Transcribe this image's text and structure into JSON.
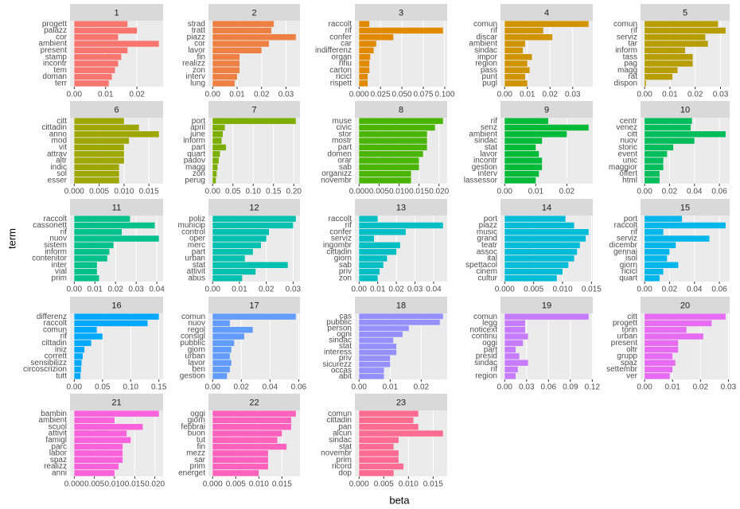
{
  "chart_data": {
    "type": "bar",
    "xlabel": "beta",
    "ylabel": "term",
    "facets": [
      {
        "title": "1",
        "color": "#F8766D",
        "categories": [
          "progett",
          "palazz",
          "cor",
          "ambient",
          "present",
          "stamp",
          "incontr",
          "tem",
          "doman",
          "terr"
        ],
        "values": [
          0.017,
          0.02,
          0.014,
          0.027,
          0.017,
          0.015,
          0.014,
          0.013,
          0.012,
          0.011
        ],
        "xlim": [
          -0.00135,
          0.02835
        ],
        "xticks": [
          {
            "value": 0,
            "label": "0.00"
          },
          0.01,
          0.02
        ]
      },
      {
        "title": "2",
        "color": "#EE8044",
        "categories": [
          "strad",
          "tratt",
          "piazz",
          "cor",
          "lavor",
          "fin",
          "realizz",
          "zon",
          "interv",
          "lung"
        ],
        "values": [
          0.025,
          0.024,
          0.034,
          0.023,
          0.02,
          0.011,
          0.011,
          0.011,
          0.01,
          0.009
        ],
        "xlim": [
          -0.0017,
          0.0357
        ],
        "xticks": [
          {
            "value": 0,
            "label": "0.00"
          },
          0.01,
          0.02,
          0.03
        ]
      },
      {
        "title": "3",
        "color": "#E18A00",
        "categories": [
          "raccolt",
          "rif",
          "confer",
          "car",
          "indifferenz",
          "organ",
          "rifiu",
          "carton",
          "ricicl",
          "rispett"
        ],
        "values": [
          0.012,
          0.098,
          0.04,
          0.02,
          0.017,
          0.013,
          0.012,
          0.012,
          0.01,
          0.01
        ],
        "xlim": [
          -0.0049,
          0.1029
        ],
        "xticks": [
          {
            "value": 0,
            "label": "0.000"
          },
          0.025,
          {
            "value": 0.05,
            "label": "0.050"
          },
          0.075,
          {
            "value": 0.1,
            "label": "0.100"
          }
        ]
      },
      {
        "title": "4",
        "color": "#CF9400",
        "categories": [
          "comun",
          "rif",
          "discar",
          "ambient",
          "sindac",
          "impor",
          "region",
          "pass",
          "punt",
          "pugl"
        ],
        "values": [
          0.037,
          0.017,
          0.021,
          0.009,
          0.008,
          0.012,
          0.01,
          0.011,
          0.009,
          0.01
        ],
        "xlim": [
          -0.00185,
          0.03885
        ],
        "xticks": [
          {
            "value": 0,
            "label": "0.00"
          },
          0.01,
          0.02,
          0.03
        ]
      },
      {
        "title": "5",
        "color": "#B89D00",
        "categories": [
          "comun",
          "rif",
          "serviz",
          "tar",
          "inform",
          "tass",
          "pag",
          "magg",
          "rat",
          "dispon"
        ],
        "values": [
          0.029,
          0.032,
          0.024,
          0.025,
          0.016,
          0.019,
          0.019,
          0.013,
          0.011,
          0.0005
        ],
        "xlim": [
          -0.0016,
          0.0336
        ],
        "xticks": [
          {
            "value": 0,
            "label": "0.00"
          },
          0.01,
          0.02,
          0.03
        ]
      },
      {
        "title": "6",
        "color": "#9DA700",
        "categories": [
          "citt",
          "cittadin",
          "anno",
          "mod",
          "vit",
          "attrav",
          "altr",
          "indic",
          "sol",
          "esser"
        ],
        "values": [
          0.01,
          0.013,
          0.017,
          0.011,
          0.01,
          0.01,
          0.01,
          0.009,
          0.009,
          0.009
        ],
        "xlim": [
          -0.00085,
          0.01785
        ],
        "xticks": [
          {
            "value": 0,
            "label": "0.000"
          },
          0.005,
          {
            "value": 0.01,
            "label": "0.010"
          },
          0.015
        ]
      },
      {
        "title": "7",
        "color": "#7CAE00",
        "categories": [
          "port",
          "april",
          "june",
          "inform",
          "part",
          "quart",
          "padov",
          "magg",
          "zon",
          "perug"
        ],
        "values": [
          0.205,
          0.03,
          0.025,
          0.022,
          0.033,
          0.018,
          0.015,
          0.012,
          0.01,
          0.008
        ],
        "xlim": [
          -0.01025,
          0.21525
        ],
        "xticks": [
          {
            "value": 0,
            "label": "0.00"
          },
          0.05,
          {
            "value": 0.1,
            "label": "0.10"
          },
          0.15,
          {
            "value": 0.2,
            "label": "0.20"
          }
        ]
      },
      {
        "title": "8",
        "color": "#49B500",
        "categories": [
          "muse",
          "civic",
          "stor",
          "mostr",
          "part",
          "domen",
          "orar",
          "sab",
          "organizz",
          "novembr"
        ],
        "values": [
          0.021,
          0.019,
          0.017,
          0.017,
          0.017,
          0.016,
          0.015,
          0.015,
          0.013,
          0.013
        ],
        "xlim": [
          -0.00105,
          0.02205
        ],
        "xticks": [
          {
            "value": 0,
            "label": "0.000"
          },
          0.005,
          {
            "value": 0.01,
            "label": "0.010"
          },
          0.015,
          {
            "value": 0.02,
            "label": "0.020"
          }
        ]
      },
      {
        "title": "9",
        "color": "#00BA38",
        "categories": [
          "rif",
          "senz",
          "ambient",
          "sindac",
          "stat",
          "lavor",
          "incontr",
          "gestion",
          "interv",
          "lassessor"
        ],
        "values": [
          0.014,
          0.027,
          0.02,
          0.012,
          0.01,
          0.011,
          0.012,
          0.012,
          0.011,
          0.01
        ],
        "xlim": [
          -0.00135,
          0.02835
        ],
        "xticks": [
          {
            "value": 0,
            "label": "0.00"
          },
          0.01,
          0.02
        ]
      },
      {
        "title": "10",
        "color": "#00BD5C",
        "categories": [
          "centr",
          "venez",
          "citt",
          "nuov",
          "storic",
          "event",
          "unic",
          "maggior",
          "offert",
          "html"
        ],
        "values": [
          0.038,
          0.037,
          0.065,
          0.04,
          0.023,
          0.018,
          0.015,
          0.015,
          0.012,
          0.012
        ],
        "xlim": [
          -0.00325,
          0.06825
        ],
        "xticks": [
          {
            "value": 0,
            "label": "0.00"
          },
          0.02,
          0.04,
          0.06
        ]
      },
      {
        "title": "11",
        "color": "#00C08B",
        "categories": [
          "raccolt",
          "cassonett",
          "rif",
          "nuov",
          "sistem",
          "inform",
          "contenitor",
          "inter",
          "vial",
          "prim"
        ],
        "values": [
          0.027,
          0.039,
          0.023,
          0.041,
          0.019,
          0.017,
          0.016,
          0.011,
          0.011,
          0.012
        ],
        "xlim": [
          -0.00205,
          0.04305
        ],
        "xticks": [
          {
            "value": 0,
            "label": "0.00"
          },
          0.01,
          0.02,
          0.03,
          0.04
        ]
      },
      {
        "title": "12",
        "color": "#00C0AF",
        "categories": [
          "poliz",
          "municip",
          "control",
          "oper",
          "merc",
          "part",
          "urban",
          "stat",
          "attivit",
          "abus"
        ],
        "values": [
          0.031,
          0.03,
          0.021,
          0.02,
          0.018,
          0.015,
          0.012,
          0.028,
          0.016,
          0.011
        ],
        "xlim": [
          -0.00155,
          0.03255
        ],
        "xticks": [
          {
            "value": 0,
            "label": "0.00"
          },
          0.01,
          0.02,
          0.03
        ]
      },
      {
        "title": "13",
        "color": "#00BFC4",
        "categories": [
          "raccolt",
          "rif",
          "confer",
          "serviz",
          "ingombr",
          "cittadin",
          "giorn",
          "sab",
          "priv",
          "zon"
        ],
        "values": [
          0.01,
          0.045,
          0.025,
          0.008,
          0.022,
          0.02,
          0.015,
          0.013,
          0.011,
          0.01
        ],
        "xlim": [
          -0.00225,
          0.04725
        ],
        "xticks": [
          {
            "value": 0,
            "label": "0.00"
          },
          0.01,
          0.02,
          0.03,
          0.04
        ]
      },
      {
        "title": "14",
        "color": "#00BCD8",
        "categories": [
          "port",
          "piazz",
          "music",
          "grand",
          "teatr",
          "assoc",
          "ital",
          "spettacol",
          "cinem",
          "cultur"
        ],
        "values": [
          0.0105,
          0.012,
          0.0145,
          0.014,
          0.013,
          0.0125,
          0.012,
          0.011,
          0.01,
          0.009
        ],
        "xlim": [
          -0.000725,
          0.015225
        ],
        "xticks": [
          {
            "value": 0,
            "label": "0.000"
          },
          0.005,
          {
            "value": 0.01,
            "label": "0.010"
          },
          0.015
        ]
      },
      {
        "title": "15",
        "color": "#00B6EB",
        "categories": [
          "port",
          "raccolt",
          "rif",
          "serviz",
          "dicembr",
          "gennai",
          "isol",
          "giorn",
          "ricicl",
          "quart"
        ],
        "values": [
          0.03,
          0.065,
          0.015,
          0.052,
          0.025,
          0.02,
          0.018,
          0.027,
          0.015,
          0.012
        ],
        "xlim": [
          -0.00325,
          0.06825
        ],
        "xticks": [
          {
            "value": 0,
            "label": "0.00"
          },
          0.02,
          0.04,
          0.06
        ]
      },
      {
        "title": "16",
        "color": "#00A9FF",
        "categories": [
          "differenz",
          "raccolt",
          "comun",
          "rif",
          "cittadin",
          "iniz",
          "corrett",
          "sensibilizz",
          "circoscrizion",
          "tutt"
        ],
        "values": [
          0.15,
          0.13,
          0.04,
          0.05,
          0.03,
          0.018,
          0.015,
          0.013,
          0.012,
          0.011
        ],
        "xlim": [
          -0.0075,
          0.1575
        ],
        "xticks": [
          {
            "value": 0,
            "label": "0.00"
          },
          0.05,
          {
            "value": 0.1,
            "label": "0.10"
          },
          0.15
        ]
      },
      {
        "title": "17",
        "color": "#619CFF",
        "categories": [
          "comun",
          "nuov",
          "regol",
          "consigl",
          "pubblic",
          "giorn",
          "urban",
          "lavor",
          "ben",
          "gestion"
        ],
        "values": [
          0.058,
          0.012,
          0.028,
          0.022,
          0.015,
          0.013,
          0.012,
          0.013,
          0.012,
          0.01
        ],
        "xlim": [
          -0.0029,
          0.0609
        ],
        "xticks": [
          {
            "value": 0,
            "label": "0.00"
          },
          0.02,
          0.04,
          0.06
        ]
      },
      {
        "title": "18",
        "color": "#9590FF",
        "categories": [
          "cas",
          "pubblic",
          "person",
          "ogni",
          "sindac",
          "stat",
          "interess",
          "priv",
          "sicurezz",
          "occas",
          "abit"
        ],
        "values": [
          0.027,
          0.026,
          0.016,
          0.014,
          0.011,
          0.012,
          0.012,
          0.01,
          0.01,
          0.008,
          0.008
        ],
        "xlim": [
          -0.00135,
          0.02835
        ],
        "xticks": [
          {
            "value": 0,
            "label": "0.00"
          },
          0.01,
          0.02
        ]
      },
      {
        "title": "19",
        "color": "#C77CFF",
        "categories": [
          "comun",
          "legg",
          "noticext",
          "continu",
          "oggi",
          "part",
          "presid",
          "sindac",
          "rif",
          "region"
        ],
        "values": [
          0.115,
          0.028,
          0.028,
          0.032,
          0.025,
          0.015,
          0.02,
          0.032,
          0.018,
          0.015
        ],
        "xlim": [
          -0.00575,
          0.12075
        ],
        "xticks": [
          {
            "value": 0,
            "label": "0.00"
          },
          0.03,
          0.06,
          0.09,
          0.12
        ]
      },
      {
        "title": "20",
        "color": "#E76BF3",
        "categories": [
          "citt",
          "progett",
          "torin",
          "urban",
          "present",
          "oltr",
          "grupp",
          "spaz",
          "settembr",
          "ver"
        ],
        "values": [
          0.029,
          0.024,
          0.015,
          0.021,
          0.012,
          0.012,
          0.01,
          0.011,
          0.01,
          0.009
        ],
        "xlim": [
          -0.00145,
          0.03045
        ],
        "xticks": [
          {
            "value": 0,
            "label": "0.00"
          },
          0.01,
          0.02,
          0.03
        ]
      },
      {
        "title": "21",
        "color": "#FA62DB",
        "categories": [
          "bambin",
          "ambient",
          "scuol",
          "attivit",
          "famigl",
          "parc",
          "labor",
          "spaz",
          "realizz",
          "anni"
        ],
        "values": [
          0.021,
          0.01,
          0.017,
          0.013,
          0.014,
          0.012,
          0.012,
          0.012,
          0.011,
          0.01
        ],
        "xlim": [
          -0.00105,
          0.02205
        ],
        "xticks": [
          {
            "value": 0,
            "label": "0.000"
          },
          0.005,
          {
            "value": 0.01,
            "label": "0.010"
          },
          0.015,
          {
            "value": 0.02,
            "label": "0.020"
          }
        ]
      },
      {
        "title": "22",
        "color": "#FF62BC",
        "categories": [
          "oggi",
          "giorn",
          "febbrai",
          "buon",
          "tut",
          "fin",
          "mezz",
          "sar",
          "prim",
          "energet"
        ],
        "values": [
          0.018,
          0.017,
          0.017,
          0.015,
          0.014,
          0.016,
          0.012,
          0.012,
          0.012,
          0.01
        ],
        "xlim": [
          -0.0009,
          0.0189
        ],
        "xticks": [
          {
            "value": 0,
            "label": "0.000"
          },
          0.005,
          {
            "value": 0.01,
            "label": "0.010"
          },
          0.015
        ]
      },
      {
        "title": "23",
        "color": "#FF6C91",
        "categories": [
          "comun",
          "cittadin",
          "pan",
          "alcun",
          "sindac",
          "stat",
          "novembr",
          "prim",
          "ricord",
          "dop"
        ],
        "values": [
          0.012,
          0.011,
          0.012,
          0.017,
          0.008,
          0.007,
          0.008,
          0.008,
          0.009,
          0.007
        ],
        "xlim": [
          -0.00085,
          0.01785
        ],
        "xticks": [
          {
            "value": 0,
            "label": "0.000"
          },
          0.005,
          {
            "value": 0.01,
            "label": "0.010"
          },
          0.015
        ]
      }
    ]
  }
}
